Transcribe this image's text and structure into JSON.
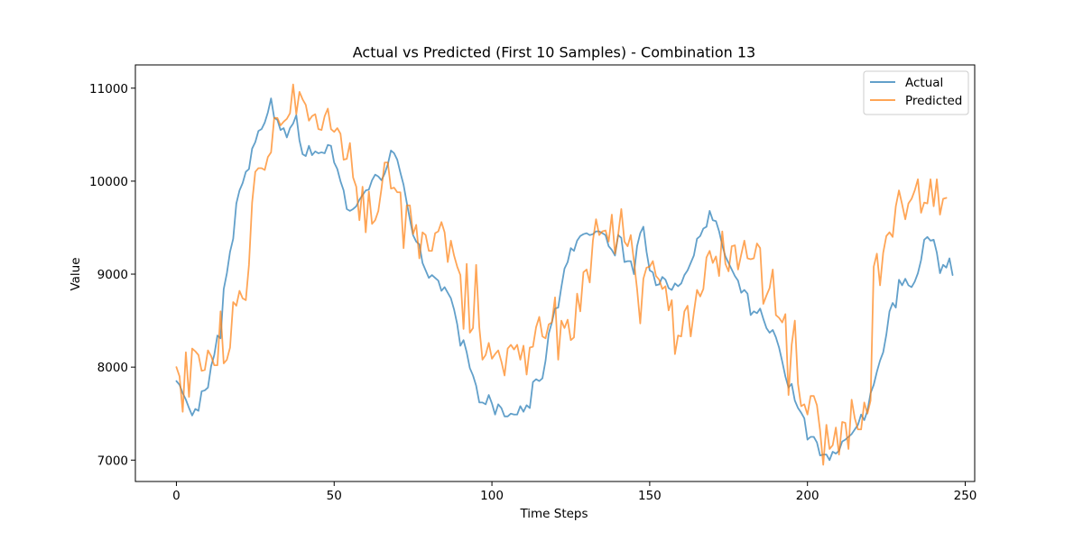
{
  "chart_data": {
    "type": "line",
    "title": "Actual vs Predicted (First 10 Samples) - Combination 13",
    "xlabel": "Time Steps",
    "ylabel": "Value",
    "xlim": [
      -13,
      253
    ],
    "ylim": [
      6770,
      11250
    ],
    "xticks": [
      0,
      50,
      100,
      150,
      200,
      250
    ],
    "yticks": [
      7000,
      8000,
      9000,
      10000,
      11000
    ],
    "grid": false,
    "legend_position": "top-right",
    "series": [
      {
        "name": "Actual",
        "color": "#1f77b4",
        "x_start": 0,
        "values": [
          7850,
          7810,
          7720,
          7650,
          7560,
          7480,
          7550,
          7530,
          7740,
          7750,
          7780,
          8010,
          8130,
          8340,
          8310,
          8840,
          9010,
          9240,
          9380,
          9760,
          9900,
          9980,
          10100,
          10130,
          10350,
          10420,
          10540,
          10560,
          10630,
          10740,
          10890,
          10680,
          10660,
          10550,
          10570,
          10470,
          10570,
          10620,
          10710,
          10440,
          10290,
          10270,
          10380,
          10280,
          10320,
          10300,
          10310,
          10300,
          10390,
          10380,
          10200,
          10130,
          10000,
          9900,
          9700,
          9680,
          9700,
          9730,
          9800,
          9850,
          9900,
          9910,
          10010,
          10070,
          10050,
          10010,
          10080,
          10180,
          10330,
          10300,
          10230,
          10090,
          9960,
          9770,
          9590,
          9420,
          9350,
          9320,
          9120,
          9040,
          8960,
          8990,
          8960,
          8930,
          8820,
          8860,
          8800,
          8740,
          8620,
          8460,
          8230,
          8290,
          8160,
          7990,
          7910,
          7800,
          7620,
          7620,
          7600,
          7700,
          7610,
          7490,
          7600,
          7560,
          7470,
          7470,
          7500,
          7490,
          7490,
          7580,
          7520,
          7590,
          7560,
          7840,
          7870,
          7850,
          7880,
          8070,
          8360,
          8480,
          8630,
          8640,
          8860,
          9060,
          9130,
          9280,
          9250,
          9360,
          9410,
          9430,
          9440,
          9420,
          9430,
          9460,
          9460,
          9440,
          9420,
          9300,
          9260,
          9200,
          9420,
          9390,
          9130,
          9140,
          9140,
          9000,
          9300,
          9440,
          9510,
          9240,
          9040,
          9020,
          8880,
          8890,
          8970,
          8940,
          8850,
          8830,
          8900,
          8870,
          8900,
          8990,
          9040,
          9120,
          9200,
          9380,
          9410,
          9490,
          9510,
          9680,
          9580,
          9570,
          9460,
          9310,
          9190,
          9120,
          9050,
          8980,
          8930,
          8800,
          8830,
          8790,
          8560,
          8600,
          8580,
          8630,
          8520,
          8420,
          8370,
          8400,
          8320,
          8210,
          8060,
          7900,
          7780,
          7820,
          7640,
          7560,
          7510,
          7450,
          7220,
          7250,
          7250,
          7190,
          7050,
          7060,
          7060,
          7000,
          7090,
          7070,
          7100,
          7200,
          7220,
          7250,
          7280,
          7330,
          7380,
          7490,
          7430,
          7530,
          7720,
          7810,
          7950,
          8070,
          8160,
          8350,
          8600,
          8690,
          8640,
          8940,
          8880,
          8950,
          8880,
          8860,
          8920,
          9010,
          9150,
          9370,
          9400,
          9360,
          9370,
          9230,
          9010,
          9100,
          9070,
          9170,
          8990
        ]
      },
      {
        "name": "Predicted",
        "color": "#ff7f0e",
        "x_start": 0,
        "values": [
          8000,
          7900,
          7520,
          8160,
          7680,
          8200,
          8170,
          8130,
          7960,
          7970,
          8180,
          8120,
          8020,
          8020,
          8600,
          8040,
          8080,
          8210,
          8700,
          8660,
          8820,
          8740,
          8720,
          9100,
          9770,
          10100,
          10140,
          10140,
          10120,
          10260,
          10310,
          10680,
          10680,
          10600,
          10640,
          10670,
          10730,
          11040,
          10720,
          10960,
          10880,
          10820,
          10650,
          10700,
          10720,
          10560,
          10550,
          10700,
          10780,
          10560,
          10530,
          10570,
          10510,
          10230,
          10240,
          10410,
          10040,
          9940,
          9580,
          9940,
          9450,
          9890,
          9540,
          9580,
          9680,
          9920,
          10200,
          10200,
          9920,
          9930,
          9880,
          9880,
          9280,
          9740,
          9740,
          9430,
          9530,
          9170,
          9450,
          9420,
          9250,
          9250,
          9440,
          9460,
          9560,
          9450,
          9130,
          9360,
          9200,
          9080,
          8990,
          8410,
          9110,
          8370,
          8420,
          9100,
          8430,
          8080,
          8130,
          8260,
          8090,
          8140,
          8180,
          8060,
          7910,
          8200,
          8240,
          8190,
          8240,
          8080,
          8230,
          7920,
          8210,
          8220,
          8430,
          8540,
          8330,
          8310,
          8460,
          8480,
          8750,
          8080,
          8500,
          8420,
          8510,
          8290,
          8320,
          8790,
          8600,
          9020,
          9050,
          8910,
          9360,
          9590,
          9420,
          9460,
          9470,
          9350,
          9640,
          9220,
          9420,
          9700,
          9350,
          9300,
          9420,
          9140,
          8840,
          8470,
          8950,
          9070,
          9080,
          9140,
          8980,
          8940,
          8840,
          8870,
          8610,
          8720,
          8140,
          8340,
          8330,
          8600,
          8660,
          8330,
          8590,
          8830,
          8760,
          8840,
          9180,
          9250,
          9120,
          9190,
          8980,
          9460,
          9110,
          9030,
          9300,
          9310,
          9050,
          9210,
          9360,
          9170,
          9160,
          9170,
          9330,
          9280,
          8680,
          8770,
          8850,
          9050,
          8560,
          8530,
          8480,
          8570,
          7700,
          8240,
          8500,
          7820,
          7580,
          7600,
          7490,
          7690,
          7690,
          7590,
          7320,
          6950,
          7380,
          7120,
          7160,
          7350,
          7060,
          7410,
          7400,
          7120,
          7650,
          7450,
          7330,
          7330,
          7620,
          7500,
          7640,
          9080,
          9220,
          8880,
          9230,
          9410,
          9450,
          9400,
          9730,
          9900,
          9750,
          9590,
          9760,
          9810,
          9900,
          10020,
          9660,
          9770,
          9760,
          10020,
          9730,
          10020,
          9640,
          9810,
          9820
        ]
      }
    ]
  }
}
